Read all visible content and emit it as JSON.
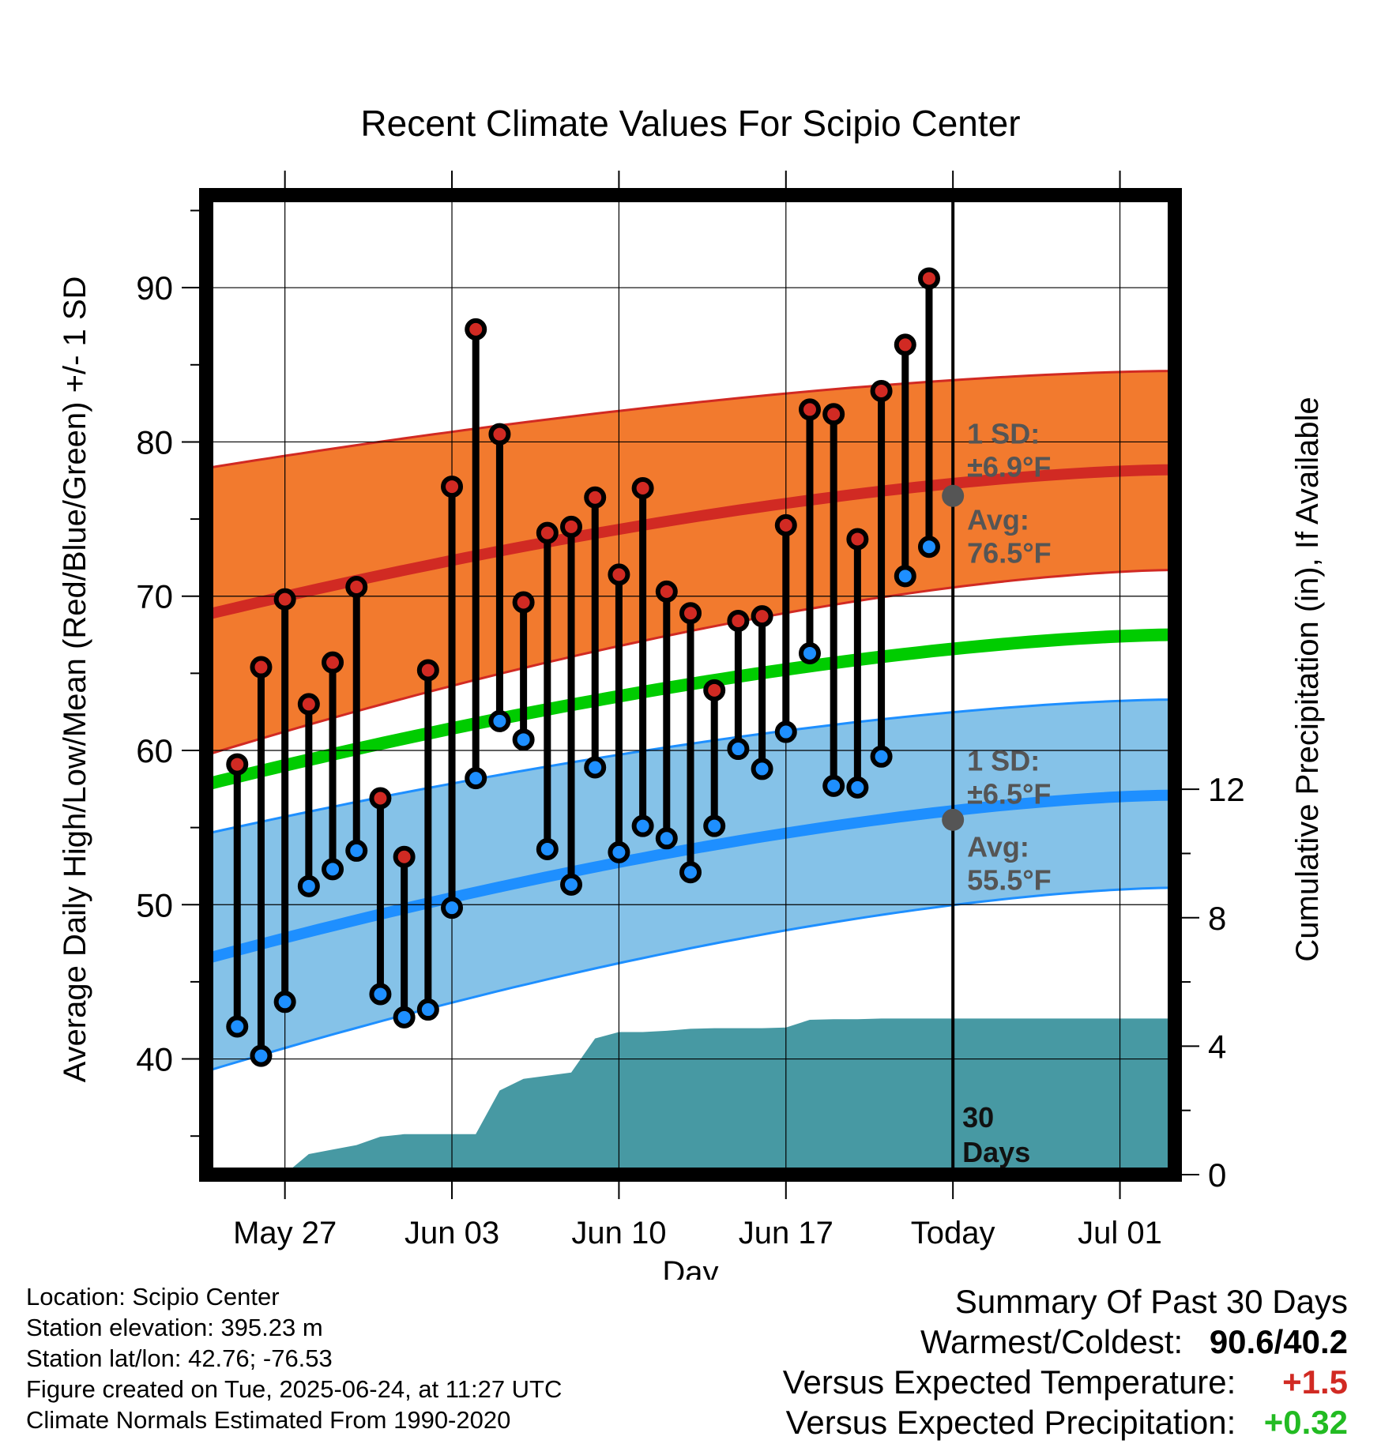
{
  "title": "Recent Climate Values For Scipio Center",
  "chart_data": {
    "type": "line",
    "title": "Recent Climate Values For Scipio Center",
    "xlabel": "Day",
    "ylabel": "Average Daily High/Low/Mean (Red/Blue/Green) +/- 1 SD",
    "y2label": "Cumulative Precipitation (in), If Available",
    "ylim": [
      32.5,
      96
    ],
    "y2lim": [
      0,
      30.5
    ],
    "yticks": [
      40,
      50,
      60,
      70,
      80,
      90
    ],
    "y2ticks": [
      0,
      4,
      8,
      12
    ],
    "xlim": [
      -3.3,
      37.3
    ],
    "xticks": [
      {
        "day": 0,
        "label": "May 27"
      },
      {
        "day": 7,
        "label": "Jun 03"
      },
      {
        "day": 14,
        "label": "Jun 10"
      },
      {
        "day": 21,
        "label": "Jun 17"
      },
      {
        "day": 28,
        "label": "Today"
      },
      {
        "day": 35,
        "label": "Jul 01"
      }
    ],
    "today_day": 28,
    "days_label": "30 Days",
    "observations": {
      "day": [
        -2,
        -1,
        0,
        1,
        2,
        3,
        4,
        5,
        6,
        7,
        8,
        9,
        10,
        11,
        12,
        13,
        14,
        15,
        16,
        17,
        18,
        19,
        20,
        21,
        22,
        23,
        24,
        25,
        26,
        27
      ],
      "high": [
        59.1,
        65.4,
        69.8,
        63.0,
        65.7,
        70.6,
        56.9,
        53.1,
        65.2,
        77.1,
        87.3,
        80.5,
        69.6,
        74.1,
        74.5,
        76.4,
        71.4,
        77.0,
        70.3,
        68.9,
        63.9,
        68.4,
        68.7,
        74.6,
        82.1,
        81.8,
        73.7,
        83.3,
        86.3,
        90.6
      ],
      "low": [
        42.1,
        40.2,
        43.7,
        51.2,
        52.3,
        53.5,
        44.2,
        42.7,
        43.2,
        49.8,
        58.2,
        61.9,
        60.7,
        53.6,
        51.3,
        58.9,
        53.4,
        55.1,
        54.3,
        52.1,
        55.1,
        60.1,
        58.8,
        61.2,
        66.3,
        57.7,
        57.6,
        59.6,
        71.3,
        73.2
      ]
    },
    "normals": {
      "day": [
        -3.3,
        37.3
      ],
      "avg_high": [
        68.8,
        78.2
      ],
      "high_sd_upper": [
        78.3,
        84.6
      ],
      "high_sd_lower": [
        59.7,
        71.7
      ],
      "avg_mean": [
        57.8,
        67.5
      ],
      "avg_low": [
        46.5,
        57.1
      ],
      "low_sd_upper": [
        54.6,
        63.3
      ],
      "low_sd_lower": [
        39.2,
        51.1
      ]
    },
    "precipitation_cumulative": {
      "day": [
        -2,
        -1,
        0,
        1,
        2,
        3,
        4,
        5,
        6,
        7,
        8,
        9,
        10,
        11,
        12,
        13,
        14,
        15,
        16,
        17,
        18,
        19,
        20,
        21,
        22,
        23,
        24,
        25,
        26,
        27,
        37.3
      ],
      "value": [
        0,
        0,
        0.02,
        0.64,
        0.78,
        0.92,
        1.18,
        1.26,
        1.26,
        1.26,
        1.26,
        2.62,
        2.98,
        3.08,
        3.18,
        4.24,
        4.44,
        4.44,
        4.48,
        4.54,
        4.56,
        4.56,
        4.56,
        4.58,
        4.82,
        4.84,
        4.84,
        4.86,
        4.86,
        4.86,
        4.86
      ]
    },
    "annotations": {
      "high_sd": {
        "line1": "1 SD:",
        "line2": "±6.9°F"
      },
      "high_avg": {
        "line1": "Avg:",
        "line2": "76.5°F",
        "value": 76.5
      },
      "low_sd": {
        "line1": "1 SD:",
        "line2": "±6.5°F"
      },
      "low_avg": {
        "line1": "Avg:",
        "line2": "55.5°F",
        "value": 55.5
      }
    },
    "colors": {
      "high_band": "#f27a2e",
      "high_line": "#d12a23",
      "low_band": "#85c2e8",
      "low_line": "#1e8fff",
      "mean_line": "#00cc00",
      "precip": "#4799a3",
      "high_point": "#d12a23",
      "low_point": "#1e8fff",
      "annotation_text": "#555555"
    },
    "grid": true
  },
  "info": {
    "location": "Location: Scipio Center",
    "elevation": "Station elevation: 395.23 m",
    "latlon": "Station lat/lon: 42.76; -76.53",
    "created": "Figure created on Tue, 2025-06-24, at 11:27 UTC",
    "normals": "Climate Normals Estimated From 1990-2020"
  },
  "summary": {
    "heading": "Summary Of Past 30 Days",
    "warmest_label": "Warmest/Coldest:",
    "warmest_value": "90.6/40.2",
    "temp_label": "Versus Expected Temperature:",
    "temp_value": "+1.5",
    "temp_color": "#d12a23",
    "precip_label": "Versus Expected Precipitation:",
    "precip_value": "+0.32",
    "precip_color": "#22bb22"
  }
}
